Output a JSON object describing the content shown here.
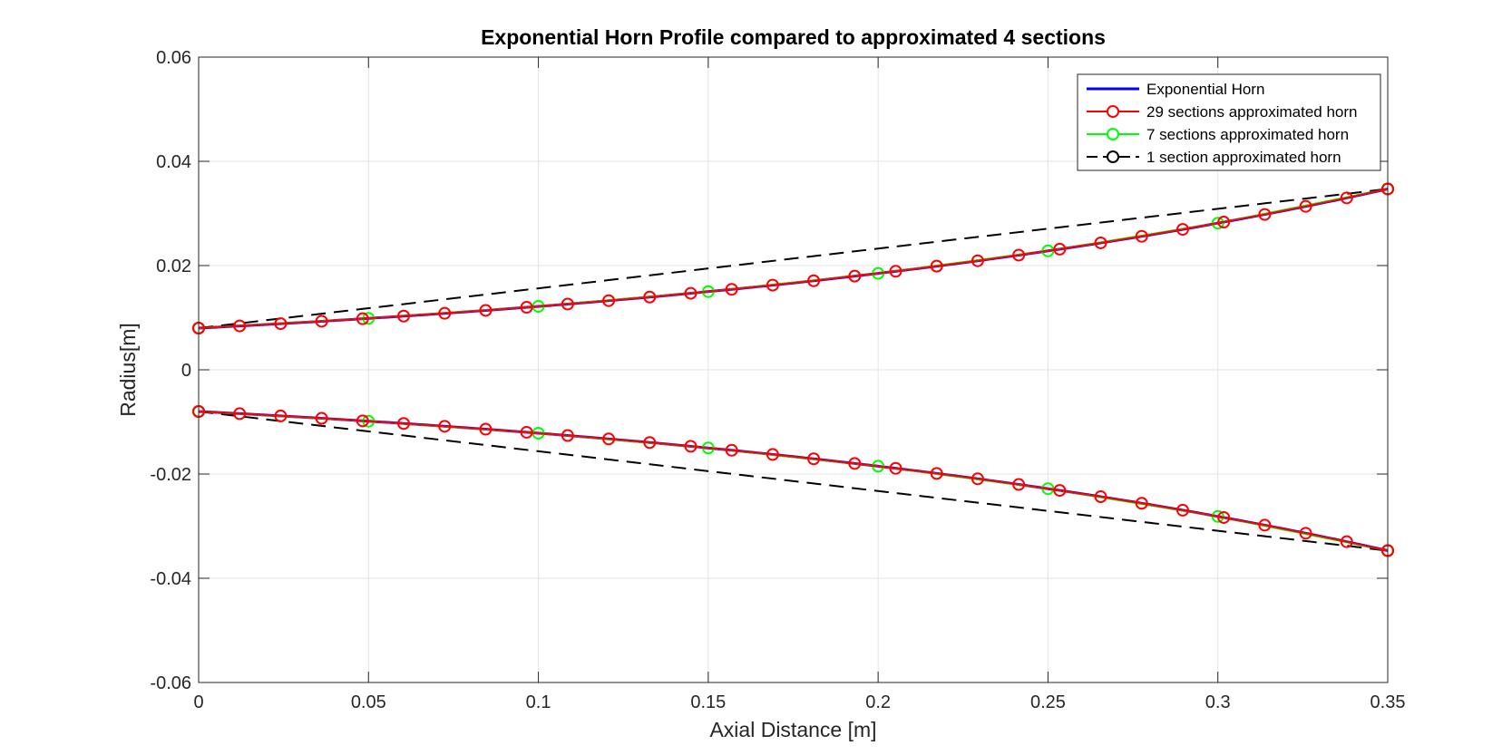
{
  "chart_data": {
    "type": "line",
    "title": "Exponential Horn Profile compared to approximated 4 sections",
    "xlabel": "Axial Distance [m]",
    "ylabel": "Radius[m]",
    "xlim": [
      0,
      0.35
    ],
    "ylim": [
      -0.06,
      0.06
    ],
    "xticks": [
      0,
      0.05,
      0.1,
      0.15,
      0.2,
      0.25,
      0.3,
      0.35
    ],
    "xtick_labels": [
      "0",
      "0.05",
      "0.1",
      "0.15",
      "0.2",
      "0.25",
      "0.3",
      "0.35"
    ],
    "yticks": [
      -0.06,
      -0.04,
      -0.02,
      0,
      0.02,
      0.04,
      0.06
    ],
    "ytick_labels": [
      "-0.06",
      "-0.04",
      "-0.02",
      "0",
      "0.02",
      "0.04",
      "0.06"
    ],
    "grid": true,
    "legend_position": "top-right",
    "horn": {
      "r_start": 0.008,
      "r_end": 0.0347,
      "length": 0.35,
      "mirrored": true
    },
    "series": [
      {
        "name": "Exponential Horn",
        "color": "#0000FF",
        "line": "solid",
        "marker": "none",
        "sections": 200
      },
      {
        "name": "29 sections approximated horn",
        "color": "#FF0000",
        "line": "solid",
        "marker": "circle",
        "sections": 29
      },
      {
        "name": "7 sections approximated horn",
        "color": "#00FF00",
        "line": "solid",
        "marker": "circle",
        "sections": 7
      },
      {
        "name": "1 section approximated horn",
        "color": "#000000",
        "line": "dashed",
        "marker": "circle",
        "sections": 1
      }
    ]
  }
}
